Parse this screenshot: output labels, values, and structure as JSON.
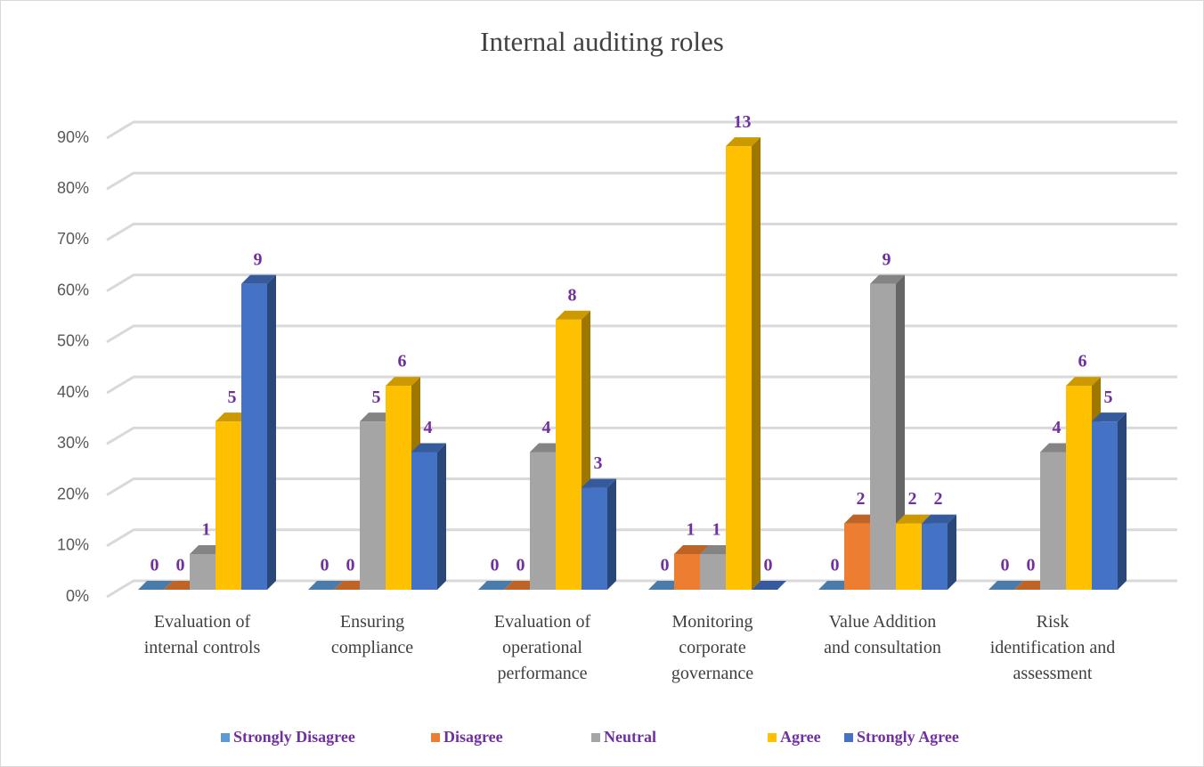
{
  "chart_data": {
    "type": "bar3d",
    "title": "Internal auditing roles",
    "categories": [
      "Evaluation of internal controls",
      "Ensuring compliance",
      "Evaluation of operational performance",
      "Monitoring corporate governance",
      "Value Addition and consultation",
      "Risk identification and assessment"
    ],
    "series": [
      {
        "name": "Strongly Disagree",
        "color": "#5b9bd5",
        "values": [
          0,
          0,
          0,
          0,
          0,
          0
        ],
        "counts": [
          0,
          0,
          0,
          0,
          0,
          0
        ]
      },
      {
        "name": "Disagree",
        "color": "#ed7d31",
        "values": [
          0,
          0,
          0,
          7,
          13,
          0
        ],
        "counts": [
          0,
          0,
          0,
          1,
          2,
          0
        ]
      },
      {
        "name": "Neutral",
        "color": "#a5a5a5",
        "values": [
          7,
          33,
          27,
          7,
          60,
          27
        ],
        "counts": [
          1,
          5,
          4,
          1,
          9,
          4
        ]
      },
      {
        "name": "Agree",
        "color": "#ffc000",
        "values": [
          33,
          40,
          53,
          87,
          13,
          40
        ],
        "counts": [
          5,
          6,
          8,
          13,
          2,
          6
        ]
      },
      {
        "name": "Strongly Agree",
        "color": "#4472c4",
        "values": [
          60,
          27,
          20,
          0,
          13,
          33
        ],
        "counts": [
          9,
          4,
          3,
          0,
          2,
          5
        ]
      }
    ],
    "ylim": [
      0,
      90
    ],
    "yticks": [
      {
        "value": 0,
        "label": "0%"
      },
      {
        "value": 10,
        "label": "10%"
      },
      {
        "value": 20,
        "label": "20%"
      },
      {
        "value": 30,
        "label": "30%"
      },
      {
        "value": 40,
        "label": "40%"
      },
      {
        "value": 50,
        "label": "50%"
      },
      {
        "value": 60,
        "label": "60%"
      },
      {
        "value": 70,
        "label": "70%"
      },
      {
        "value": 80,
        "label": "80%"
      },
      {
        "value": 90,
        "label": "90%"
      }
    ],
    "grid": true,
    "legend": "bottom",
    "label_color": "#7030a0"
  }
}
